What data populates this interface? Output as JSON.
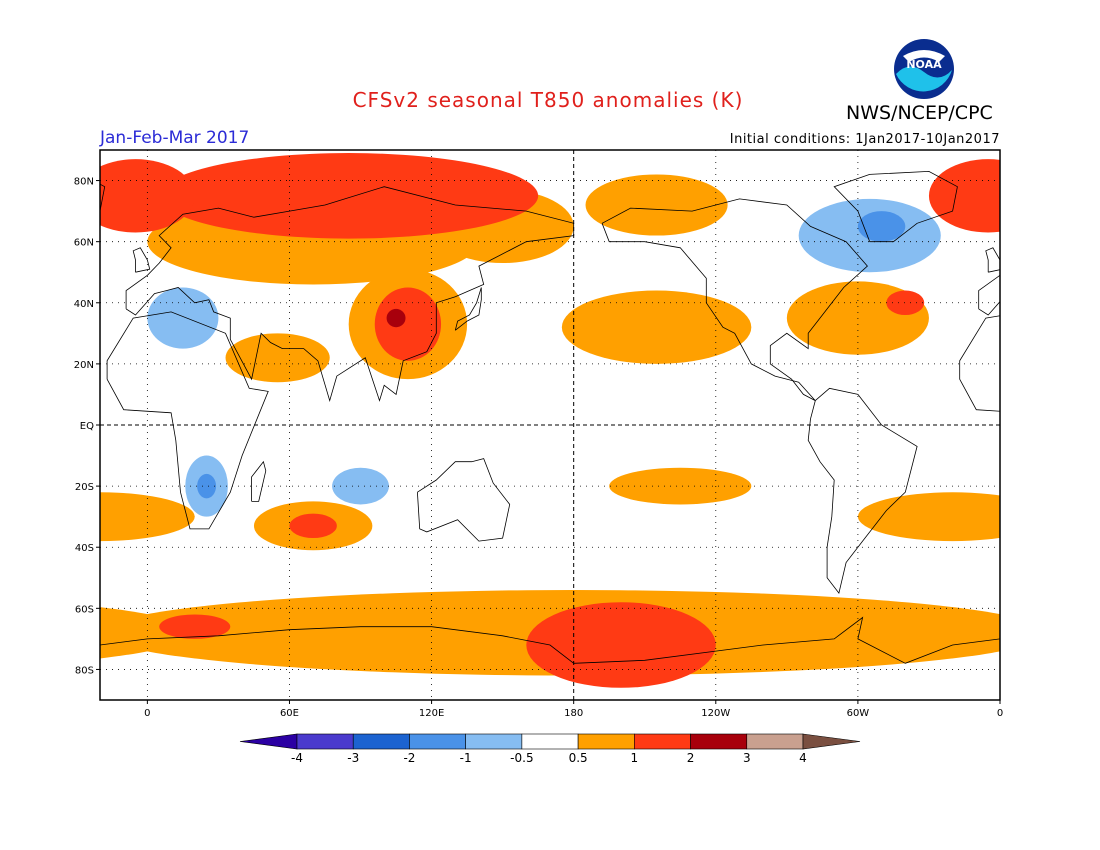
{
  "header": {
    "title": "CFSv2 seasonal T850 anomalies (K)",
    "agency": "NWS/NCEP/CPC",
    "logo_text": "NOAA",
    "period": "Jan-Feb-Mar 2017",
    "initial_conditions": "Initial conditions: 1Jan2017-10Jan2017"
  },
  "map": {
    "projection": "equirectangular",
    "lon_range": [
      -20,
      360
    ],
    "lat_range": [
      -90,
      90
    ],
    "lat_ticks": [
      {
        "value": 80,
        "label": "80N"
      },
      {
        "value": 60,
        "label": "60N"
      },
      {
        "value": 40,
        "label": "40N"
      },
      {
        "value": 20,
        "label": "20N"
      },
      {
        "value": 0,
        "label": "EQ"
      },
      {
        "value": -20,
        "label": "20S"
      },
      {
        "value": -40,
        "label": "40S"
      },
      {
        "value": -60,
        "label": "60S"
      },
      {
        "value": -80,
        "label": "80S"
      }
    ],
    "lon_ticks": [
      {
        "value": 0,
        "label": "0"
      },
      {
        "value": 60,
        "label": "60E"
      },
      {
        "value": 120,
        "label": "120E"
      },
      {
        "value": 180,
        "label": "180"
      },
      {
        "value": 240,
        "label": "120W"
      },
      {
        "value": 300,
        "label": "60W"
      },
      {
        "value": 360,
        "label": "0"
      }
    ],
    "regions": [
      {
        "level": 1,
        "name": "arctic-asia-warm",
        "lon": 85,
        "lat": 75,
        "rlon": 80,
        "rlat": 14
      },
      {
        "level": 0.5,
        "name": "eurasia-band",
        "lon": 70,
        "lat": 60,
        "rlon": 70,
        "rlat": 14
      },
      {
        "level": 1,
        "name": "greenland-sea-warm",
        "lon": 355,
        "lat": 75,
        "rlon": 25,
        "rlat": 12
      },
      {
        "level": 0.5,
        "name": "siberia-east",
        "lon": 150,
        "lat": 65,
        "rlon": 30,
        "rlat": 12
      },
      {
        "level": 0.5,
        "name": "arctic-canada",
        "lon": 215,
        "lat": 72,
        "rlon": 30,
        "rlat": 10
      },
      {
        "level": 0.5,
        "name": "tibet-china",
        "lon": 110,
        "lat": 33,
        "rlon": 25,
        "rlat": 18
      },
      {
        "level": 1,
        "name": "tibet-core",
        "lon": 110,
        "lat": 33,
        "rlon": 14,
        "rlat": 12
      },
      {
        "level": 2,
        "name": "tibet-peak",
        "lon": 105,
        "lat": 35,
        "rlon": 4,
        "rlat": 3
      },
      {
        "level": 0.5,
        "name": "arabia",
        "lon": 55,
        "lat": 22,
        "rlon": 22,
        "rlat": 8
      },
      {
        "level": 0.5,
        "name": "north-pacific",
        "lon": 215,
        "lat": 32,
        "rlon": 40,
        "rlat": 12
      },
      {
        "level": 0.5,
        "name": "north-atlantic",
        "lon": 300,
        "lat": 35,
        "rlon": 30,
        "rlat": 12
      },
      {
        "level": 1,
        "name": "north-atlantic-core",
        "lon": 320,
        "lat": 40,
        "rlon": 8,
        "rlat": 4
      },
      {
        "level": 0.5,
        "name": "south-pacific-band",
        "lon": 225,
        "lat": -20,
        "rlon": 30,
        "rlat": 6
      },
      {
        "level": 0.5,
        "name": "south-indian",
        "lon": 70,
        "lat": -33,
        "rlon": 25,
        "rlat": 8
      },
      {
        "level": 1,
        "name": "south-indian-core",
        "lon": 70,
        "lat": -33,
        "rlon": 10,
        "rlat": 4
      },
      {
        "level": 0.5,
        "name": "south-atlantic",
        "lon": 340,
        "lat": -30,
        "rlon": 40,
        "rlat": 8
      },
      {
        "level": 0.5,
        "name": "southern-ocean",
        "lon": 180,
        "lat": -68,
        "rlon": 200,
        "rlat": 14
      },
      {
        "level": 1,
        "name": "antarctic-pacific",
        "lon": 200,
        "lat": -72,
        "rlon": 40,
        "rlat": 14
      },
      {
        "level": 1,
        "name": "weddell",
        "lon": 20,
        "lat": -66,
        "rlon": 15,
        "rlat": 4
      },
      {
        "level": -0.5,
        "name": "europe-cold",
        "lon": 15,
        "lat": 35,
        "rlon": 15,
        "rlat": 10
      },
      {
        "level": -0.5,
        "name": "canada-cold",
        "lon": 305,
        "lat": 62,
        "rlon": 30,
        "rlat": 12
      },
      {
        "level": -1,
        "name": "greenland-cold",
        "lon": 310,
        "lat": 65,
        "rlon": 10,
        "rlat": 5
      },
      {
        "level": -0.5,
        "name": "south-africa-cold",
        "lon": 25,
        "lat": -20,
        "rlon": 9,
        "rlat": 10
      },
      {
        "level": -1,
        "name": "south-africa-core",
        "lon": 25,
        "lat": -20,
        "rlon": 4,
        "rlat": 4
      },
      {
        "level": -0.5,
        "name": "indian-ocean-cold",
        "lon": 90,
        "lat": -20,
        "rlon": 12,
        "rlat": 6
      }
    ]
  },
  "colorbar": {
    "labels": [
      "-4",
      "-3",
      "-2",
      "-1",
      "-0.5",
      "0.5",
      "1",
      "2",
      "3",
      "4"
    ],
    "colors": [
      "#2b00a3",
      "#4a3acd",
      "#1c63d0",
      "#4a92e8",
      "#86bdf2",
      "#ffffff",
      "#ffa000",
      "#ff3a14",
      "#a8000c",
      "#c9a08f",
      "#7a4f40"
    ]
  }
}
